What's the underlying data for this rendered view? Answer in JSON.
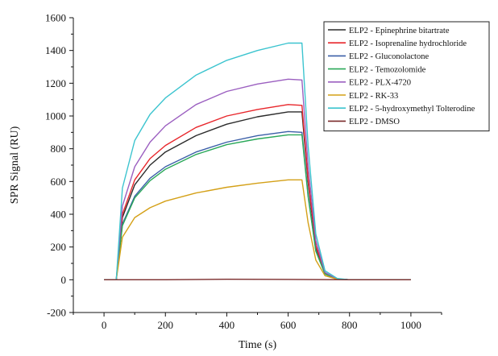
{
  "chart_data": {
    "type": "line",
    "title": "",
    "xlabel": "Time (s)",
    "ylabel": "SPR Signal (RU)",
    "xlim": [
      -100,
      1100
    ],
    "ylim": [
      -200,
      1600
    ],
    "x_ticks": [
      0,
      200,
      400,
      600,
      800,
      1000
    ],
    "y_ticks": [
      -200,
      0,
      200,
      400,
      600,
      800,
      1000,
      1200,
      1400,
      1600
    ],
    "x_tick_labels": [
      "0",
      "200",
      "400",
      "600",
      "800",
      "1000"
    ],
    "y_tick_labels": [
      "-200",
      "0",
      "200",
      "400",
      "600",
      "800",
      "1000",
      "1200",
      "1400",
      "1600"
    ],
    "grid": false,
    "legend_position": "top-right",
    "series": [
      {
        "name": "ELP2 - Epinephrine bitartrate",
        "color": "#2b2b2b",
        "x": [
          0,
          40,
          60,
          100,
          150,
          200,
          300,
          400,
          500,
          600,
          645,
          665,
          690,
          720,
          760,
          800,
          1000
        ],
        "y": [
          0,
          0,
          380,
          580,
          700,
          780,
          880,
          950,
          995,
          1025,
          1025,
          600,
          200,
          40,
          5,
          0,
          0
        ]
      },
      {
        "name": "ELP2 - Isoprenaline hydrochloride",
        "color": "#e8262b",
        "x": [
          0,
          40,
          60,
          100,
          150,
          200,
          300,
          400,
          500,
          600,
          645,
          665,
          690,
          720,
          760,
          800,
          1000
        ],
        "y": [
          0,
          0,
          400,
          610,
          740,
          820,
          930,
          1000,
          1040,
          1070,
          1065,
          620,
          210,
          40,
          5,
          0,
          0
        ]
      },
      {
        "name": "ELP2 - Gluconolactone",
        "color": "#3b5fa8",
        "x": [
          0,
          40,
          60,
          100,
          150,
          200,
          300,
          400,
          500,
          600,
          645,
          665,
          690,
          720,
          760,
          800,
          1000
        ],
        "y": [
          0,
          0,
          340,
          510,
          620,
          690,
          780,
          840,
          880,
          905,
          900,
          520,
          180,
          35,
          5,
          0,
          0
        ]
      },
      {
        "name": "ELP2 - Temozolomide",
        "color": "#2aa859",
        "x": [
          0,
          40,
          60,
          100,
          150,
          200,
          300,
          400,
          500,
          600,
          645,
          665,
          690,
          720,
          760,
          800,
          1000
        ],
        "y": [
          0,
          0,
          330,
          500,
          605,
          675,
          765,
          825,
          860,
          885,
          885,
          510,
          175,
          35,
          5,
          0,
          0
        ]
      },
      {
        "name": "ELP2 - PLX-4720",
        "color": "#9b5fc0",
        "x": [
          0,
          40,
          60,
          100,
          150,
          200,
          300,
          400,
          500,
          600,
          645,
          665,
          690,
          720,
          760,
          800,
          1000
        ],
        "y": [
          0,
          0,
          450,
          690,
          840,
          940,
          1070,
          1150,
          1195,
          1225,
          1220,
          700,
          240,
          45,
          5,
          0,
          0
        ]
      },
      {
        "name": "ELP2 - RK-33",
        "color": "#d4a017",
        "x": [
          0,
          40,
          60,
          100,
          150,
          200,
          300,
          400,
          500,
          600,
          645,
          665,
          690,
          720,
          760,
          800,
          1000
        ],
        "y": [
          0,
          0,
          260,
          380,
          440,
          480,
          530,
          565,
          590,
          610,
          610,
          350,
          120,
          25,
          3,
          0,
          0
        ]
      },
      {
        "name": "ELP2 - 5-hydroxymethyl Tolterodine",
        "color": "#3cc4cf",
        "x": [
          0,
          40,
          60,
          100,
          150,
          200,
          300,
          400,
          500,
          600,
          645,
          665,
          690,
          720,
          760,
          800,
          1000
        ],
        "y": [
          0,
          0,
          560,
          850,
          1010,
          1110,
          1250,
          1340,
          1400,
          1445,
          1445,
          820,
          280,
          55,
          8,
          0,
          0
        ]
      },
      {
        "name": "ELP2 - DMSO",
        "color": "#7a2a2a",
        "x": [
          0,
          200,
          400,
          600,
          800,
          1000
        ],
        "y": [
          0,
          0,
          3,
          2,
          0,
          0
        ]
      }
    ]
  }
}
